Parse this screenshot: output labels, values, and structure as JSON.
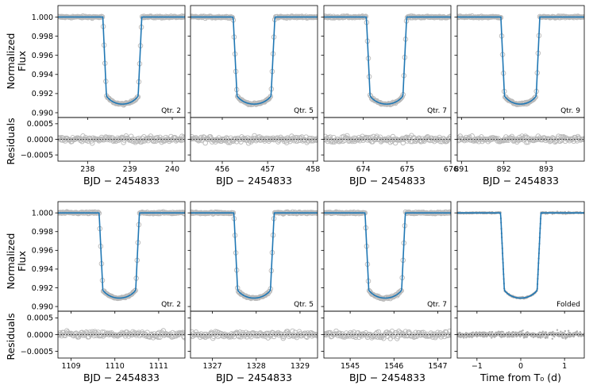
{
  "chart_data": {
    "type": "scatter",
    "description_labels": {
      "flux_ylabel_line1": "Normalized",
      "flux_ylabel_line2": "Flux",
      "resid_ylabel": "Residuals",
      "bjd_xlabel": "BJD − 2454833",
      "folded_xlabel": "Time from T₀ (d)"
    },
    "flux_axis": {
      "ylim": [
        0.9895,
        1.0012
      ],
      "ticks": [
        1.0,
        0.998,
        0.996,
        0.994,
        0.992,
        0.99
      ],
      "tick_labels": [
        "1.000",
        "0.998",
        "0.996",
        "0.994",
        "0.992",
        "0.990"
      ]
    },
    "resid_axis": {
      "ylim": [
        -0.0007,
        0.0007
      ],
      "ticks": [
        0.0005,
        0.0,
        -0.0005
      ],
      "tick_labels": [
        "0.0005",
        "0.0000",
        "−0.0005"
      ]
    },
    "transit_model": {
      "depth": 0.0091,
      "total_duration_d": 0.92,
      "ingress_duration_d": 0.085,
      "baseline_flux": 1.0
    },
    "panels": [
      {
        "row": 0,
        "col": 0,
        "label": "Qtr. 2",
        "mid_time": 238.82,
        "xlim": [
          237.3,
          240.3
        ],
        "xticks": [
          238,
          239,
          240
        ],
        "folded": false
      },
      {
        "row": 0,
        "col": 1,
        "label": "Qtr. 5",
        "mid_time": 456.7,
        "xlim": [
          455.3,
          458.1
        ],
        "xticks": [
          456,
          457,
          458
        ],
        "folded": false
      },
      {
        "row": 0,
        "col": 2,
        "label": "Qtr. 7",
        "mid_time": 674.53,
        "xlim": [
          673.1,
          676.0
        ],
        "xticks": [
          674,
          675,
          676
        ],
        "folded": false
      },
      {
        "row": 0,
        "col": 3,
        "label": "Qtr. 9",
        "mid_time": 892.39,
        "xlim": [
          890.9,
          893.9
        ],
        "xticks": [
          891,
          892,
          893
        ],
        "folded": false
      },
      {
        "row": 1,
        "col": 0,
        "label": "Qtr. 2",
        "mid_time": 1110.1,
        "xlim": [
          1108.7,
          1111.6
        ],
        "xticks": [
          1109,
          1110,
          1111
        ],
        "folded": false
      },
      {
        "row": 1,
        "col": 1,
        "label": "Qtr. 5",
        "mid_time": 1327.95,
        "xlim": [
          1326.5,
          1329.4
        ],
        "xticks": [
          1327,
          1328,
          1329
        ],
        "folded": false
      },
      {
        "row": 1,
        "col": 2,
        "label": "Qtr. 7",
        "mid_time": 1545.8,
        "xlim": [
          1544.4,
          1547.3
        ],
        "xticks": [
          1545,
          1546,
          1547
        ],
        "folded": false
      },
      {
        "row": 1,
        "col": 3,
        "label": "Folded",
        "mid_time": 0.0,
        "xlim": [
          -1.45,
          1.45
        ],
        "xticks": [
          -1,
          0,
          1
        ],
        "xtick_labels": [
          "−1",
          "0",
          "1"
        ],
        "folded": true
      }
    ]
  }
}
